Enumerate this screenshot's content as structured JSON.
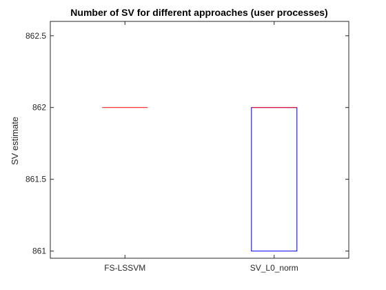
{
  "chart_data": {
    "type": "boxplot",
    "title": "Number of SV for different approaches (user processes)",
    "xlabel": "",
    "ylabel": "SV estimate",
    "ylim": [
      860.95,
      862.6
    ],
    "yticks": [
      861,
      861.5,
      862,
      862.5
    ],
    "ytick_labels": [
      "861",
      "861.5",
      "862",
      "862.5"
    ],
    "categories": [
      "FS-LSSVM",
      "SV_L0_norm"
    ],
    "boxes": [
      {
        "name": "FS-LSSVM",
        "q1": 862,
        "median": 862,
        "q3": 862,
        "whisker_low": 862,
        "whisker_high": 862
      },
      {
        "name": "SV_L0_norm",
        "q1": 861,
        "median": 862,
        "q3": 862,
        "whisker_low": 861,
        "whisker_high": 862
      }
    ],
    "grid": false,
    "colors": {
      "box": "#0000ff",
      "median": "#ff0000",
      "axis": "#262626"
    }
  }
}
